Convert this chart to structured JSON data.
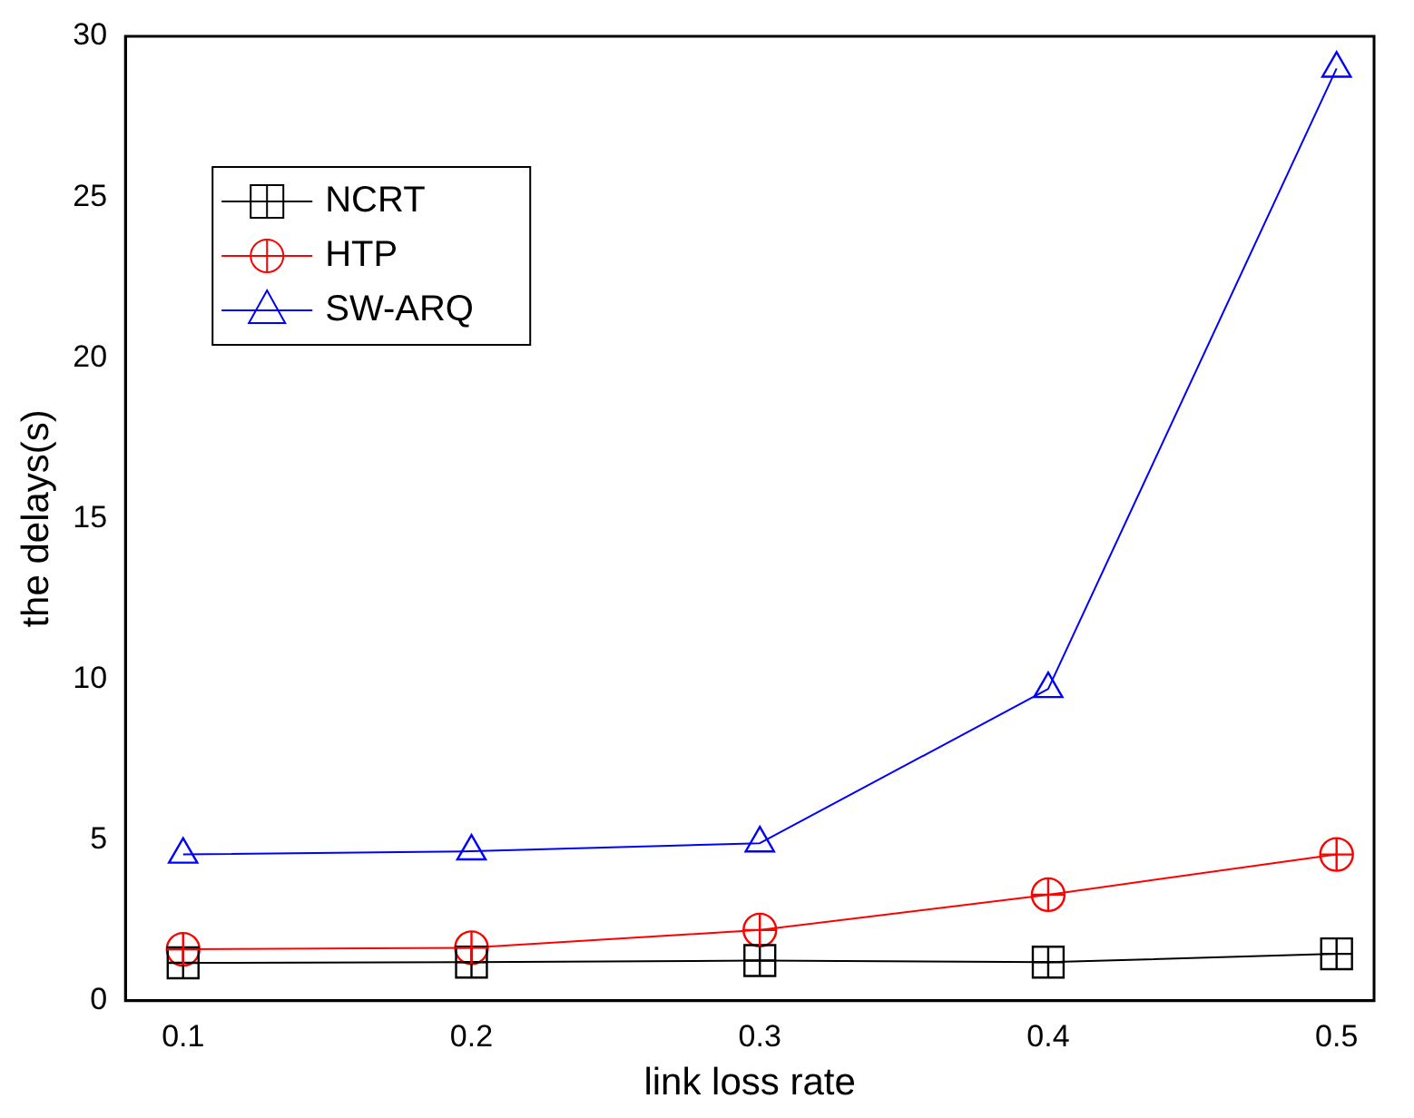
{
  "chart_data": {
    "type": "line",
    "xlabel": "link loss rate",
    "ylabel": "the delays(s)",
    "x": [
      0.1,
      0.2,
      0.3,
      0.4,
      0.5
    ],
    "xlim": [
      0.08,
      0.513
    ],
    "xticks": [
      {
        "value": 0.1,
        "label": "0.1"
      },
      {
        "value": 0.2,
        "label": "0.2"
      },
      {
        "value": 0.3,
        "label": "0.3"
      },
      {
        "value": 0.4,
        "label": "0.4"
      },
      {
        "value": 0.5,
        "label": "0.5"
      }
    ],
    "ylim": [
      0,
      30
    ],
    "yticks": [
      0,
      5,
      10,
      15,
      20,
      25,
      30
    ],
    "grid": false,
    "legend": "top left",
    "line_style": "solid",
    "series": [
      {
        "name": "NCRT",
        "color": "#000000",
        "marker": "square",
        "values": [
          1.18,
          1.2,
          1.25,
          1.2,
          1.46
        ]
      },
      {
        "name": "HTP",
        "color": "#ff0000",
        "marker": "circle",
        "values": [
          1.6,
          1.65,
          2.2,
          3.3,
          4.55
        ]
      },
      {
        "name": "SW-ARQ",
        "color": "#0000ff",
        "marker": "triangle",
        "values": [
          4.55,
          4.65,
          4.9,
          9.7,
          29
        ]
      }
    ]
  }
}
